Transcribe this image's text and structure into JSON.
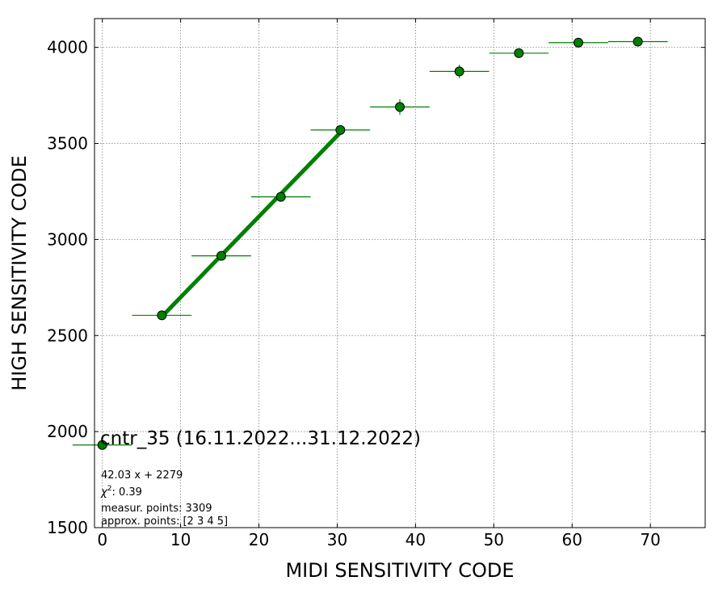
{
  "chart_data": {
    "type": "scatter",
    "title": "cntr_35 (16.11.2022...31.12.2022)",
    "xlabel": "MIDI SENSITIVITY CODE",
    "ylabel": "HIGH SENSITIVITY CODE",
    "xlim": [
      -1,
      77
    ],
    "ylim": [
      1500,
      4150
    ],
    "xticks": [
      0,
      10,
      20,
      30,
      40,
      50,
      60,
      70
    ],
    "yticks": [
      1500,
      2000,
      2500,
      3000,
      3500,
      4000
    ],
    "grid": true,
    "colors": {
      "marker": "#008000",
      "marker_edge": "#000000",
      "fit_line": "#008000",
      "grid": "#808080"
    },
    "series": [
      {
        "x": [
          0,
          7.6,
          15.2,
          22.8,
          30.4,
          38.0,
          45.6,
          53.2,
          60.8,
          68.4
        ],
        "y": [
          1930,
          2605,
          2915,
          3222,
          3570,
          3690,
          3875,
          3970,
          4025,
          4030
        ],
        "xerr": [
          3.8,
          3.8,
          3.8,
          3.8,
          3.8,
          3.8,
          3.8,
          3.8,
          3.8,
          3.8
        ],
        "yerr": [
          5,
          10,
          15,
          20,
          25,
          40,
          35,
          15,
          10,
          10
        ]
      }
    ],
    "fit": {
      "x_range": [
        7.6,
        30.4
      ],
      "slope": 42.03,
      "intercept": 2279
    },
    "annotations": {
      "equation": "42.03 x + 2279",
      "chi2_label": "χ",
      "chi2_sup": "2",
      "chi2_value": ": 0.39",
      "measur_points": "measur. points: 3309",
      "approx_points": "approx. points: [2 3 4 5]"
    }
  }
}
